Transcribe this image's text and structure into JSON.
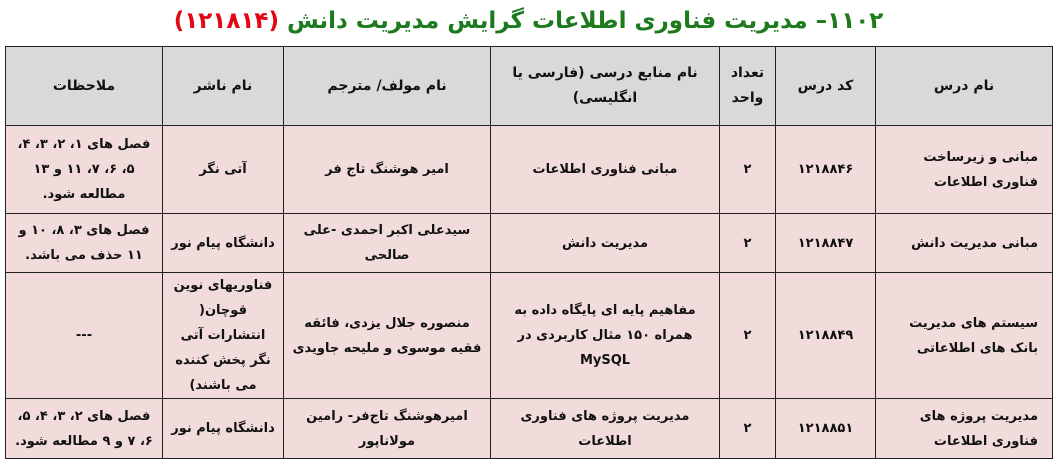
{
  "title": {
    "main": "۱۱۰۲– مدیریت فناوری اطلاعات گرایش مدیریت دانش",
    "code": "(۱۲۱۸۱۴)"
  },
  "colors": {
    "title": "#1d7a1d",
    "code": "#e30613",
    "header_bg": "#d9d9d9",
    "row_bg": "#f2dcdb"
  },
  "headers": [
    "نام درس",
    "کد درس",
    "تعداد واحد",
    "نام منابع درسی (فارسی یا انگلیسی)",
    "نام مولف/ مترجم",
    "نام ناشر",
    "ملاحظات"
  ],
  "rows": [
    {
      "name": "مبانی و زیرساخت فناوری اطلاعات",
      "code": "۱۲۱۸۸۴۶",
      "units": "۲",
      "source": "مبانی فناوری اطلاعات",
      "author": "امیر هوشنگ تاج فر",
      "publisher": "آتی نگر",
      "notes": "فصل های ۱، ۲، ۳، ۴، ۵، ۶، ۷، ۱۱ و ۱۳ مطالعه شود."
    },
    {
      "name": "مبانی مدیریت دانش",
      "code": "۱۲۱۸۸۴۷",
      "units": "۲",
      "source": "مدیریت دانش",
      "author": "سیدعلی اکبر احمدی -علی صالحی",
      "publisher": "دانشگاه پیام نور",
      "notes": "فصل های ۳، ۸، ۱۰ و ۱۱ حذف می باشد."
    },
    {
      "name": "سیستم های مدیریت بانک های اطلاعاتی",
      "code": "۱۲۱۸۸۴۹",
      "units": "۲",
      "source": "مفاهیم پایه ای پایگاه داده به همراه ۱۵۰ مثال کاربردی در MySQL",
      "author": "منصوره جلال یزدی، فائقه فقیه موسوی و ملیحه جاویدی",
      "publisher": "فناوریهای نوین قوچان( انتشارات آتی نگر پخش کننده می باشند)",
      "notes": "---"
    },
    {
      "name": "مدیریت پروژه های فناوری اطلاعات",
      "code": "۱۲۱۸۸۵۱",
      "units": "۲",
      "source": "مدیریت پروژه های فناوری اطلاعات",
      "author": "امیرهوشنگ تاج‌فر- رامین مولاناپور",
      "publisher": "دانشگاه پیام نور",
      "notes": "فصل های ۲، ۳، ۴، ۵، ۶، ۷ و ۹ مطالعه شود."
    }
  ]
}
